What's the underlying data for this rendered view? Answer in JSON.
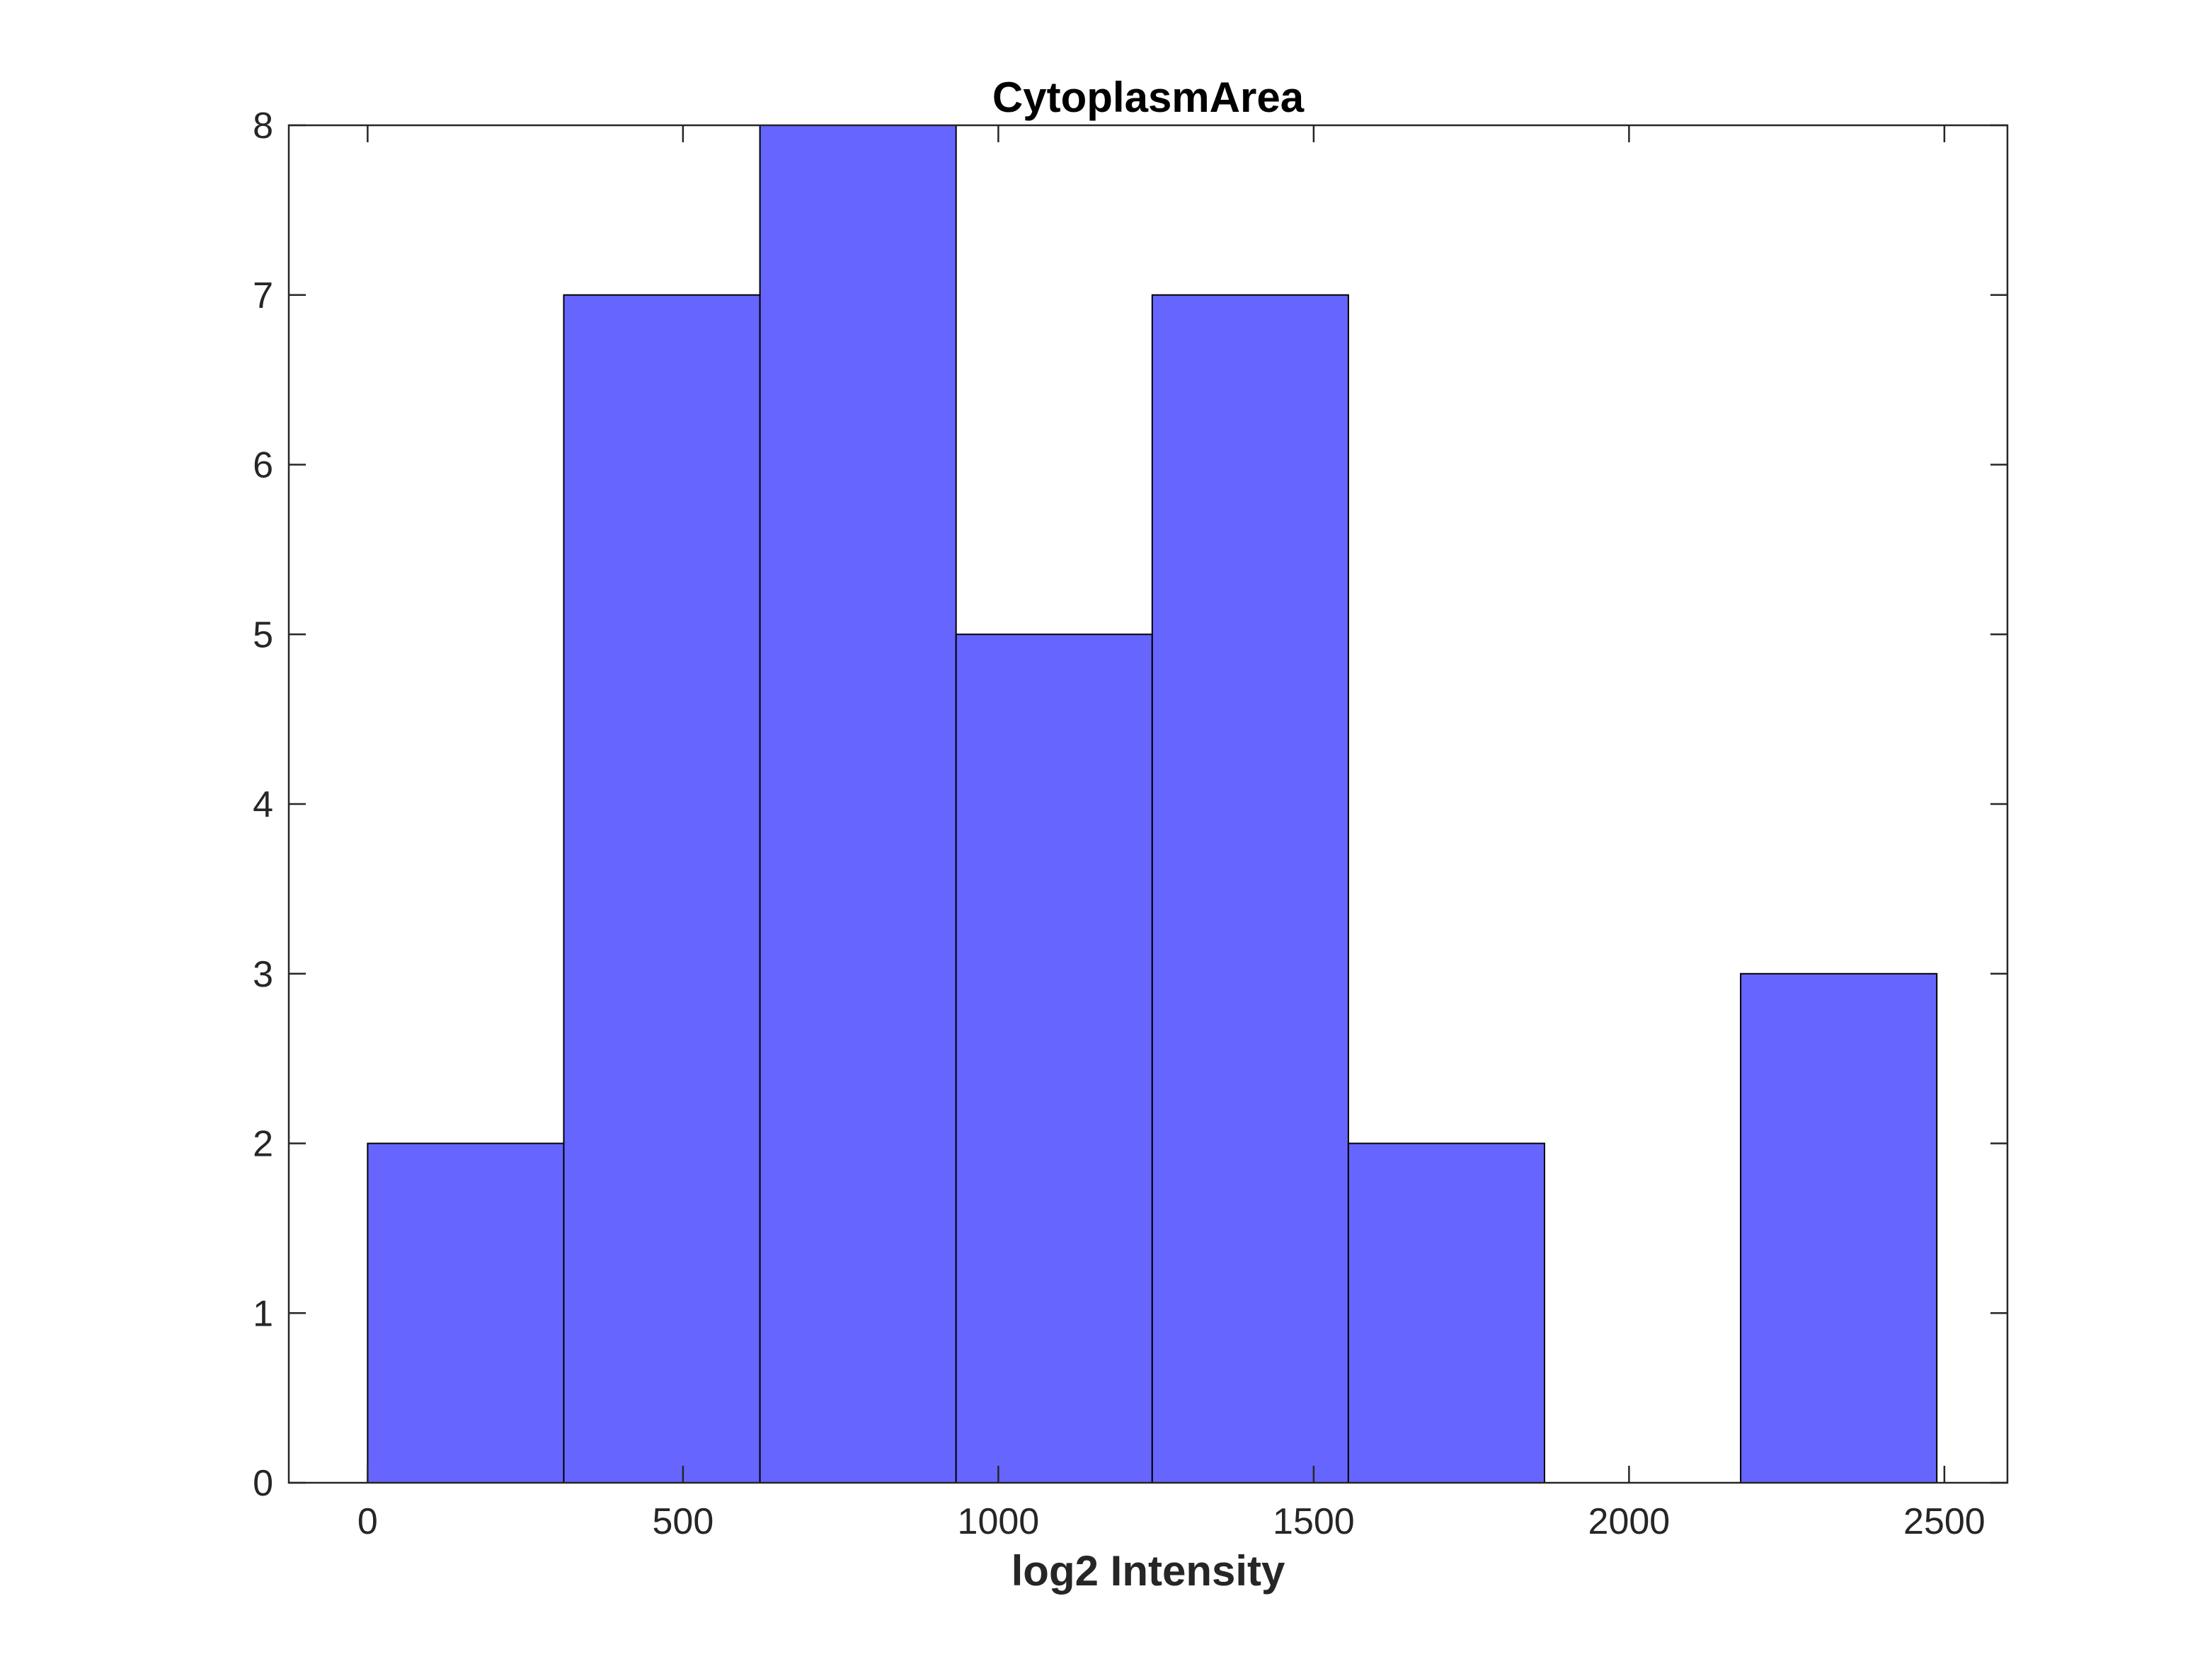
{
  "chart_data": {
    "type": "bar",
    "title": "CytoplasmArea",
    "xlabel": "log2 Intensity",
    "ylabel": "",
    "bin_edges": [
      0,
      311,
      622,
      933,
      1244,
      1555,
      1866,
      2177,
      2488
    ],
    "values": [
      2,
      7,
      8,
      5,
      7,
      2,
      0,
      3
    ],
    "xlim": [
      -125,
      2600
    ],
    "ylim": [
      0,
      8
    ],
    "x_ticks": [
      0,
      500,
      1000,
      1500,
      2000,
      2500
    ],
    "y_ticks": [
      0,
      1,
      2,
      3,
      4,
      5,
      6,
      7,
      8
    ],
    "grid": false,
    "bar_color": "#6666ff",
    "edge_color": "#000000"
  }
}
